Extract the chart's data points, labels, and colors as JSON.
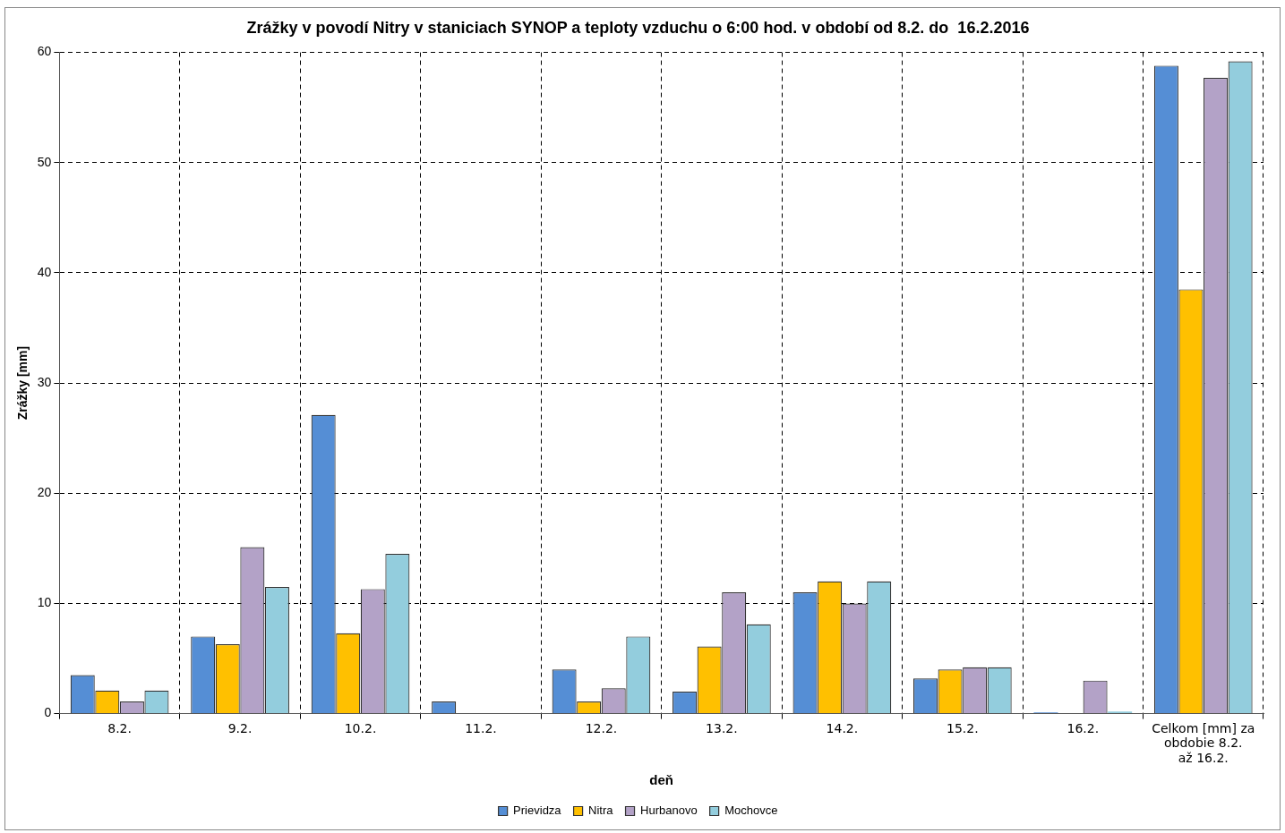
{
  "chart_data": {
    "type": "bar",
    "title": "Zrážky v povodí Nitry v staniciach SYNOP a teploty vzduchu o 6:00 hod. v období od 8.2. do  16.2.2016",
    "xlabel": "deň",
    "ylabel": "Zrážky [mm]",
    "categories": [
      "8.2.",
      "9.2.",
      "10.2.",
      "11.2.",
      "12.2.",
      "13.2.",
      "14.2.",
      "15.2.",
      "16.2.",
      "Celkom [mm] za obdobie 8.2. až 16.2."
    ],
    "series": [
      {
        "name": "Prievidza",
        "color": "#558ed5",
        "values": [
          3.5,
          7.0,
          27.1,
          1.1,
          4.0,
          2.0,
          11.0,
          3.2,
          0.1,
          58.8
        ]
      },
      {
        "name": "Nitra",
        "color": "#ffc000",
        "values": [
          2.1,
          6.3,
          7.3,
          0,
          1.1,
          6.1,
          12.0,
          4.0,
          0,
          38.5
        ]
      },
      {
        "name": "Hurbanovo",
        "color": "#b3a2c7",
        "values": [
          1.1,
          15.1,
          11.3,
          0,
          2.3,
          11.0,
          10.0,
          4.2,
          3.0,
          57.7
        ]
      },
      {
        "name": "Mochovce",
        "color": "#93cddd",
        "values": [
          2.1,
          11.5,
          14.5,
          0,
          7.0,
          8.1,
          12.0,
          4.2,
          0.2,
          59.2
        ]
      }
    ],
    "ylim": [
      0,
      60
    ],
    "yticks": [
      0,
      10,
      20,
      30,
      40,
      50,
      60
    ],
    "grid": true,
    "legend": "bottom"
  }
}
